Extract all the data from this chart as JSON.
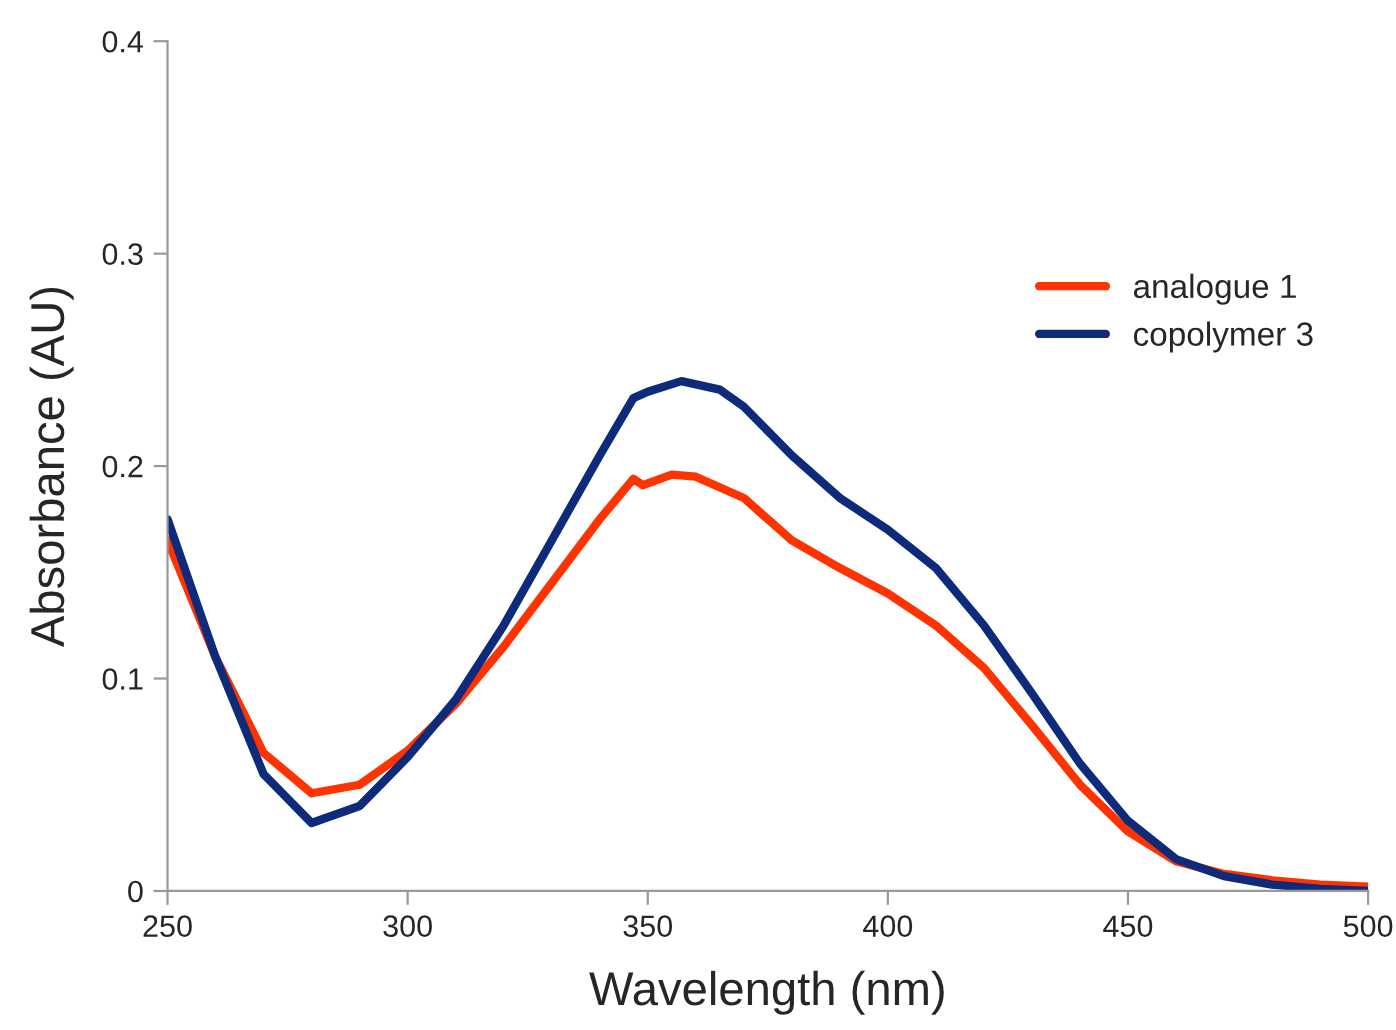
{
  "chart_data": {
    "type": "line",
    "xlabel": "Wavelength (nm)",
    "ylabel": "Absorbance (AU)",
    "xlim": [
      250,
      500
    ],
    "xticks": [
      250,
      300,
      350,
      400,
      450,
      500
    ],
    "ylim": [
      0,
      0.4
    ],
    "yticks": [
      {
        "value": 0,
        "label": "0"
      },
      0.1,
      0.2,
      0.3,
      0.4
    ],
    "grid": false,
    "legend": "right",
    "marker": "none",
    "line_style": "solid",
    "series": [
      {
        "name": "analogue 1",
        "color": "#ff3300",
        "x": [
          250,
          260,
          270,
          280,
          290,
          300,
          310,
          320,
          330,
          340,
          347,
          349,
          355,
          360,
          370,
          380,
          390,
          400,
          410,
          420,
          430,
          440,
          450,
          460,
          470,
          480,
          490,
          500
        ],
        "values": [
          0.165,
          0.11,
          0.065,
          0.046,
          0.05,
          0.066,
          0.088,
          0.115,
          0.145,
          0.175,
          0.194,
          0.191,
          0.196,
          0.195,
          0.185,
          0.165,
          0.152,
          0.14,
          0.125,
          0.105,
          0.078,
          0.05,
          0.028,
          0.014,
          0.008,
          0.005,
          0.003,
          0.002
        ]
      },
      {
        "name": "copolymer 3",
        "color": "#0d2b7a",
        "x": [
          250,
          260,
          270,
          280,
          290,
          300,
          310,
          320,
          330,
          340,
          347,
          350,
          357,
          365,
          370,
          380,
          390,
          400,
          410,
          420,
          430,
          440,
          450,
          460,
          470,
          480,
          490,
          500
        ],
        "values": [
          0.175,
          0.11,
          0.055,
          0.032,
          0.04,
          0.063,
          0.09,
          0.125,
          0.165,
          0.205,
          0.232,
          0.235,
          0.24,
          0.236,
          0.228,
          0.205,
          0.185,
          0.17,
          0.152,
          0.125,
          0.093,
          0.06,
          0.033,
          0.015,
          0.007,
          0.003,
          0.001,
          0.0
        ]
      }
    ]
  }
}
